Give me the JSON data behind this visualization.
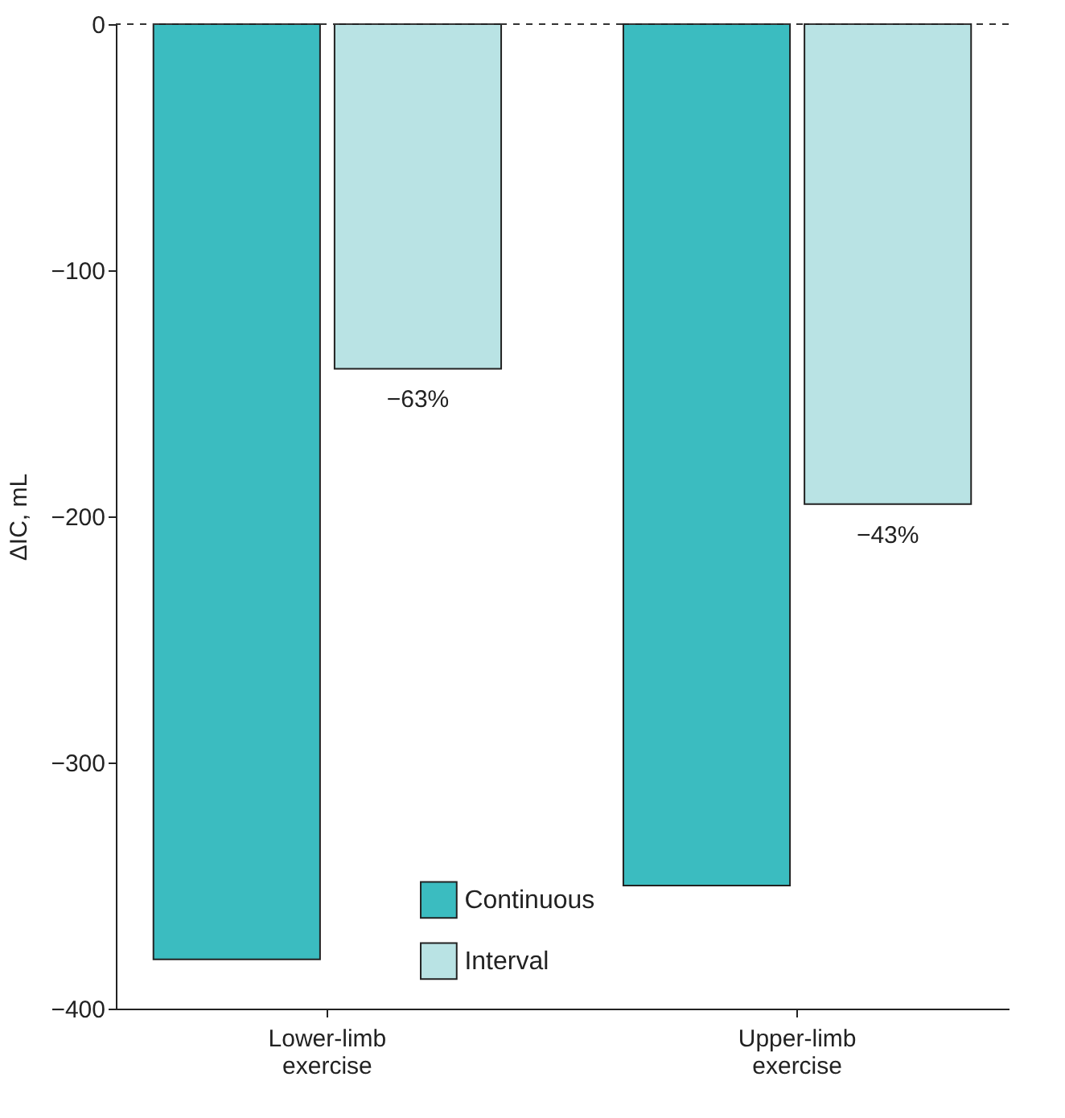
{
  "chart_data": {
    "type": "bar",
    "ylabel": "ΔIC, mL",
    "categories": [
      "Lower-limb exercise",
      "Upper-limb exercise"
    ],
    "series": [
      {
        "name": "Continuous",
        "color": "#3bbcc0",
        "values": [
          -380,
          -350
        ]
      },
      {
        "name": "Interval",
        "color": "#b9e3e4",
        "values": [
          -140,
          -195
        ]
      }
    ],
    "ylim": [
      -400,
      0
    ],
    "yticks": [
      -400,
      -300,
      -200,
      -100,
      0
    ],
    "grid": false,
    "legend": "bottom",
    "ref_lines": [
      {
        "axis": "y",
        "value": 0,
        "line_style": "dashed",
        "color": "#333333"
      }
    ],
    "annotations": [
      {
        "text": "−63%",
        "x": "Lower-limb exercise",
        "y": -140
      },
      {
        "text": "−43%",
        "x": "Upper-limb exercise",
        "y": -195
      }
    ]
  }
}
